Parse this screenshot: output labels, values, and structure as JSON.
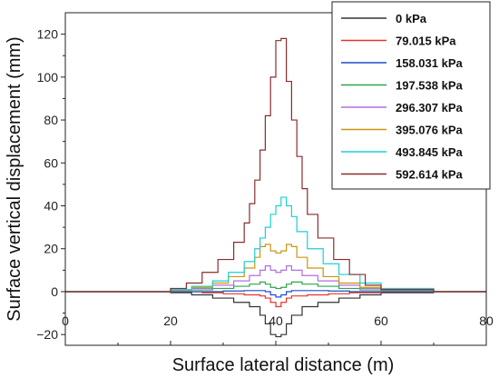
{
  "chart_data": {
    "type": "line",
    "title": "",
    "xlabel": "Surface lateral distance (m)",
    "ylabel": "Surface vertical displacement (mm)",
    "xlim": [
      0,
      80
    ],
    "ylim": [
      -25,
      130
    ],
    "xticks": [
      0,
      20,
      40,
      60,
      80
    ],
    "yticks": [
      -20,
      0,
      20,
      40,
      60,
      80,
      100,
      120
    ],
    "grid": false,
    "legend_position": "top-right",
    "series": [
      {
        "name": "0 kPa",
        "color": "#333333",
        "x": [
          0,
          10,
          20,
          24,
          28,
          32,
          35,
          37,
          38,
          39,
          40,
          41,
          42,
          43,
          45,
          48,
          52,
          56,
          60,
          70,
          80
        ],
        "y": [
          0,
          0,
          -0.5,
          -1.5,
          -3,
          -5,
          -7,
          -11,
          -15,
          -20,
          -21,
          -20,
          -15,
          -11,
          -7,
          -5,
          -3,
          -1.5,
          -0.5,
          0,
          0
        ]
      },
      {
        "name": "79.015  kPa",
        "color": "#e8322b",
        "x": [
          0,
          10,
          20,
          26,
          30,
          34,
          37,
          38,
          39,
          40,
          41,
          42,
          43,
          46,
          50,
          54,
          60,
          70,
          80
        ],
        "y": [
          0,
          0,
          0,
          -0.5,
          -1,
          -1.5,
          -2,
          -3,
          -5,
          -7,
          -5,
          -3,
          -2,
          -1.5,
          -1,
          -0.5,
          0,
          0,
          0
        ]
      },
      {
        "name": "158.031 kPa",
        "color": "#1f4fc8",
        "x": [
          0,
          10,
          20,
          26,
          30,
          34,
          37,
          38,
          39,
          40,
          41,
          42,
          43,
          46,
          50,
          54,
          60,
          70,
          80
        ],
        "y": [
          0,
          0,
          0,
          0,
          0.3,
          0.5,
          0.5,
          0,
          -1.5,
          -2.5,
          -1.5,
          0,
          0.5,
          0.5,
          0.3,
          0,
          0,
          0,
          0
        ]
      },
      {
        "name": "197.538 kPa",
        "color": "#2ca84a",
        "x": [
          0,
          10,
          20,
          24,
          28,
          32,
          35,
          37,
          38,
          39,
          40,
          41,
          42,
          43,
          45,
          48,
          52,
          56,
          60,
          70,
          80
        ],
        "y": [
          0,
          0,
          0.3,
          0.8,
          1.5,
          2.5,
          3.5,
          4.5,
          3.5,
          2,
          1.5,
          2,
          3.5,
          4.5,
          3.5,
          2.5,
          1.5,
          0.8,
          0.3,
          0,
          0
        ]
      },
      {
        "name": "296.307 kPa",
        "color": "#b36ee0",
        "x": [
          0,
          10,
          20,
          24,
          28,
          32,
          35,
          37,
          38,
          39,
          40,
          41,
          42,
          43,
          45,
          48,
          52,
          56,
          60,
          70,
          80
        ],
        "y": [
          0,
          0,
          0.5,
          1.5,
          3,
          5,
          7.5,
          10,
          12,
          10,
          9,
          10,
          12,
          10,
          7.5,
          5,
          3,
          1.5,
          0.5,
          0,
          0
        ]
      },
      {
        "name": "395.076 kPa",
        "color": "#c8960f",
        "x": [
          0,
          10,
          20,
          24,
          28,
          31,
          34,
          36,
          37,
          38,
          39,
          40,
          41,
          42,
          43,
          44,
          46,
          49,
          52,
          56,
          60,
          70,
          80
        ],
        "y": [
          0,
          0,
          0.8,
          2,
          4,
          7,
          11,
          16,
          21,
          22,
          19,
          18,
          19,
          22,
          21,
          16,
          11,
          7,
          4,
          2,
          0.8,
          0,
          0
        ]
      },
      {
        "name": "493.845 kPa",
        "color": "#1ccfd6",
        "x": [
          0,
          10,
          20,
          24,
          28,
          31,
          34,
          36,
          37,
          38,
          39,
          40,
          41,
          42,
          43,
          44,
          46,
          49,
          52,
          56,
          60,
          70,
          80
        ],
        "y": [
          0,
          0,
          1,
          2.5,
          5,
          9,
          14,
          20,
          25,
          30,
          36,
          40,
          44,
          40,
          35,
          28,
          20,
          13,
          8,
          4,
          1.5,
          0,
          0
        ]
      },
      {
        "name": "592.614 kPa",
        "color": "#8a2d2d",
        "x": [
          0,
          10,
          20,
          23,
          26,
          29,
          32,
          34,
          35,
          36,
          37,
          38,
          39,
          40,
          41,
          42,
          43,
          44,
          45,
          46,
          48,
          51,
          54,
          57,
          60,
          70,
          80
        ],
        "y": [
          0,
          0,
          1.5,
          4,
          9,
          15,
          23,
          32,
          41,
          52,
          66,
          82,
          100,
          117,
          118,
          98,
          80,
          63,
          48,
          36,
          25,
          15,
          8,
          3,
          1,
          0,
          0
        ]
      }
    ]
  }
}
